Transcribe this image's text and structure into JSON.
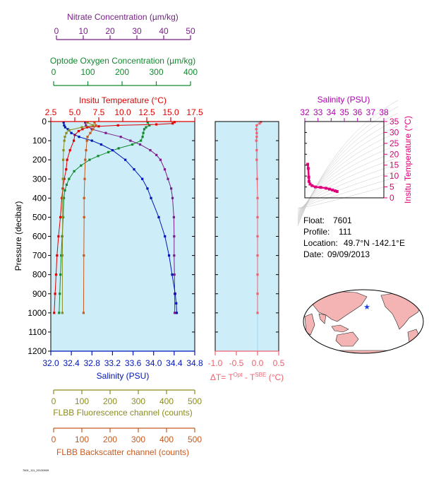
{
  "colors": {
    "panel_bg": "#cdeef8",
    "nitrate": "#7a1f8a",
    "oxygen": "#138a2f",
    "temperature": "#e00000",
    "salinity": "#0016b8",
    "fluorescence": "#8c8c1e",
    "backscatter": "#c85a1e",
    "delta_t": "#f06070",
    "inset_salinity": "#b000b0",
    "inset_temperature": "#e0007a"
  },
  "info": {
    "float_label": "Float:",
    "float_value": "7601",
    "profile_label": "Profile:",
    "profile_value": "111",
    "location_label": "Location:",
    "location_value": "49.7°N  -142.1°E",
    "date_label": "Date:",
    "date_value": "09/09/2013"
  },
  "footer_code": "7601_111_20130909",
  "chart_data": [
    {
      "type": "line",
      "ylabel": "Pressure (decibar)",
      "ylim": [
        1200,
        0
      ],
      "yticks": [
        0,
        100,
        200,
        300,
        400,
        500,
        600,
        700,
        800,
        900,
        1000,
        1100,
        1200
      ],
      "axes": {
        "nitrate": {
          "label": "Nitrate Concentration (µm/kg)",
          "range": [
            0,
            50
          ],
          "ticks": [
            "0",
            "10",
            "20",
            "30",
            "40",
            "50"
          ]
        },
        "oxygen": {
          "label": "Optode Oxygen Concentration (µm/kg)",
          "range": [
            0,
            400
          ],
          "ticks": [
            "0",
            "100",
            "200",
            "300",
            "400"
          ]
        },
        "temperature": {
          "label": "Insitu Temperature (°C)",
          "range": [
            2.5,
            17.5
          ],
          "ticks": [
            "2.5",
            "5.0",
            "7.5",
            "10.0",
            "12.5",
            "15.0",
            "17.5"
          ]
        },
        "salinity": {
          "label": "Salinity (PSU)",
          "range": [
            32.0,
            34.8
          ],
          "ticks": [
            "32.0",
            "32.4",
            "32.8",
            "33.2",
            "33.6",
            "34.0",
            "34.4",
            "34.8"
          ]
        },
        "fluorescence": {
          "label": "FLBB Fluorescence channel (counts)",
          "range": [
            0,
            500
          ],
          "ticks": [
            "0",
            "100",
            "200",
            "300",
            "400",
            "500"
          ]
        },
        "backscatter": {
          "label": "FLBB Backscatter channel (counts)",
          "range": [
            0,
            500
          ],
          "ticks": [
            "0",
            "100",
            "200",
            "300",
            "400",
            "500"
          ]
        }
      },
      "series": [
        {
          "key": "nitrate",
          "p": [
            5,
            20,
            40,
            60,
            80,
            100,
            120,
            150,
            175,
            200,
            250,
            300,
            350,
            400,
            500,
            600,
            700,
            800,
            900,
            1000
          ],
          "values": [
            10.7,
            11.0,
            13.2,
            18.4,
            24.0,
            27.6,
            31.2,
            35.0,
            37.3,
            38.8,
            40.4,
            41.6,
            42.8,
            43.3,
            43.8,
            43.9,
            43.9,
            44.0,
            44.1,
            44.1
          ]
        },
        {
          "key": "oxygen",
          "p": [
            5,
            20,
            30,
            40,
            60,
            80,
            100,
            120,
            140,
            160,
            180,
            200,
            230,
            260,
            300,
            330,
            360,
            400,
            500,
            600,
            700,
            800,
            900,
            1000
          ],
          "values": [
            275,
            280,
            270,
            265,
            262,
            260,
            255,
            230,
            190,
            160,
            130,
            105,
            80,
            60,
            45,
            38,
            33,
            30,
            28,
            25,
            22,
            20,
            18,
            16
          ]
        },
        {
          "key": "temperature",
          "p": [
            3,
            10,
            15,
            20,
            25,
            30,
            40,
            50,
            70,
            100,
            150,
            200,
            250,
            300,
            350,
            400,
            500,
            600,
            700,
            800,
            900,
            1000
          ],
          "values": [
            15.4,
            15.2,
            13.5,
            9.5,
            7.5,
            6.3,
            5.8,
            5.4,
            5.0,
            4.9,
            4.5,
            4.2,
            4.1,
            3.9,
            3.75,
            3.65,
            3.5,
            3.3,
            3.15,
            3.05,
            2.95,
            2.85
          ]
        },
        {
          "key": "salinity",
          "p": [
            5,
            20,
            30,
            40,
            60,
            80,
            100,
            120,
            150,
            200,
            250,
            300,
            350,
            400,
            500,
            600,
            700,
            800,
            900,
            950,
            1000
          ],
          "values": [
            32.25,
            32.26,
            32.28,
            32.33,
            32.4,
            32.55,
            32.8,
            32.98,
            33.2,
            33.45,
            33.62,
            33.78,
            33.88,
            33.95,
            34.1,
            34.22,
            34.3,
            34.36,
            34.42,
            34.44,
            34.45
          ]
        },
        {
          "key": "fluorescence",
          "p": [
            5,
            20,
            30,
            45,
            60,
            80,
            100,
            150,
            200,
            300,
            400,
            500,
            700,
            1000
          ],
          "values": [
            120,
            140,
            100,
            55,
            45,
            40,
            38,
            35,
            34,
            33,
            32,
            32,
            31,
            31
          ]
        },
        {
          "key": "backscatter",
          "p": [
            5,
            20,
            40,
            60,
            80,
            100,
            150,
            200,
            300,
            400,
            500,
            700,
            1000
          ],
          "values": [
            145,
            150,
            140,
            130,
            120,
            118,
            115,
            112,
            110,
            108,
            108,
            107,
            106
          ]
        }
      ]
    },
    {
      "type": "scatter",
      "xlabel": "ΔT= T",
      "xlabel_sup1": "Opt",
      "xlabel_mid": " - T",
      "xlabel_sup2": "SBE",
      "xlabel_tail": " (°C)",
      "xlim": [
        -1.0,
        0.5
      ],
      "xticks": [
        "-1.0",
        "-0.5",
        "0.0",
        "0.5"
      ],
      "ylim": [
        1200,
        0
      ],
      "series": [
        {
          "key": "delta_t",
          "p": [
            3,
            10,
            20,
            40,
            60,
            80,
            100,
            150,
            200,
            300,
            400,
            500,
            600,
            700,
            800,
            900,
            1000
          ],
          "values": [
            0.08,
            0.05,
            -0.02,
            -0.03,
            -0.02,
            -0.02,
            -0.03,
            -0.02,
            -0.02,
            -0.01,
            0.0,
            0.0,
            0.0,
            0.0,
            0.0,
            0.0,
            0.0
          ]
        }
      ]
    },
    {
      "type": "scatter",
      "title": "Salinity (PSU)",
      "xticks": [
        "32",
        "33",
        "34",
        "35",
        "36",
        "37",
        "38"
      ],
      "xlim": [
        32,
        38
      ],
      "ylabel": "Insitu Temperature (°C)",
      "yticks": [
        "0",
        "5",
        "10",
        "15",
        "20",
        "25",
        "30",
        "35"
      ],
      "ylim": [
        0,
        35
      ],
      "series": [
        {
          "key": "ts",
          "x": [
            32.22,
            32.26,
            32.3,
            32.32,
            32.4,
            32.55,
            32.8,
            33.2,
            33.62,
            33.88,
            34.1,
            34.3,
            34.45
          ],
          "y": [
            15.4,
            13.5,
            9.5,
            7.5,
            6.3,
            5.6,
            5.0,
            4.8,
            4.4,
            4.0,
            3.6,
            3.2,
            2.9
          ]
        }
      ]
    }
  ]
}
